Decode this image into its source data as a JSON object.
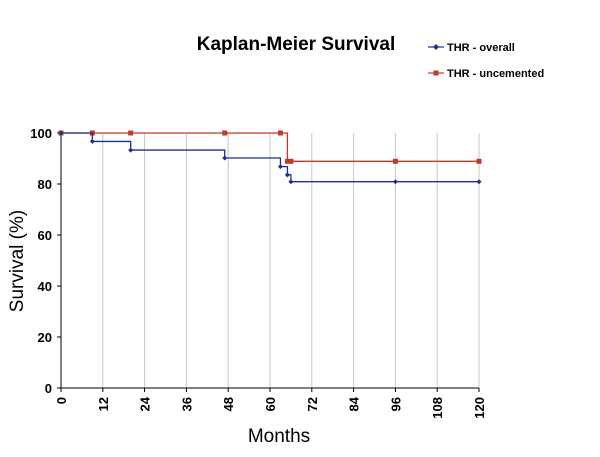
{
  "chart_data": {
    "type": "line",
    "title": "Kaplan-Meier Survival",
    "xlabel": "Months",
    "ylabel": "Survival (%)",
    "xlim": [
      0,
      120
    ],
    "ylim": [
      0,
      100
    ],
    "xticks": [
      0,
      12,
      24,
      36,
      48,
      60,
      72,
      84,
      96,
      108,
      120
    ],
    "yticks": [
      0,
      20,
      40,
      60,
      80,
      100
    ],
    "xtick_labels": [
      "0",
      "12",
      "24",
      "36",
      "48",
      "60",
      "72",
      "84",
      "96",
      "108",
      "120"
    ],
    "ytick_labels": [
      "0",
      "20",
      "40",
      "60",
      "80",
      "100"
    ],
    "grid": "vertical",
    "legend_position": "top-right",
    "step": true,
    "series": [
      {
        "name": "THR - overall",
        "color": "#1f2f8f",
        "marker": "diamond",
        "x": [
          0,
          9,
          20,
          47,
          63,
          65,
          66,
          96,
          120
        ],
        "y": [
          100,
          96.7,
          93.3,
          90.2,
          86.8,
          83.6,
          80.9,
          80.9,
          80.9
        ]
      },
      {
        "name": "THR - uncemented",
        "color": "#c0392b",
        "marker": "square",
        "x": [
          0,
          9,
          20,
          47,
          63,
          65,
          66,
          96,
          120
        ],
        "y": [
          100,
          100,
          100,
          100,
          100,
          88.9,
          88.9,
          88.9,
          88.9
        ]
      }
    ]
  }
}
